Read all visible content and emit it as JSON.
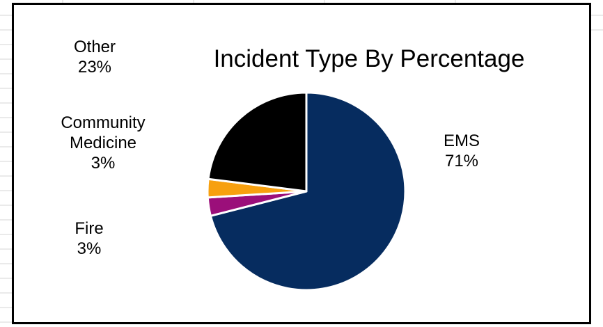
{
  "colors": {
    "EMS": "#062C5F",
    "Fire": "#9B0F7A",
    "Community Medicine": "#F7A00F",
    "Other": "#000000",
    "frame": "#000000",
    "gridline": "#D6D6D6"
  },
  "chart_data": {
    "type": "pie",
    "title": "Incident Type By Percentage",
    "categories": [
      "EMS",
      "Fire",
      "Community Medicine",
      "Other"
    ],
    "values": [
      71,
      3,
      3,
      23
    ],
    "labels": [
      {
        "category": "EMS",
        "name_lines": [
          "EMS"
        ],
        "percent": "71%"
      },
      {
        "category": "Fire",
        "name_lines": [
          "Fire"
        ],
        "percent": "3%"
      },
      {
        "category": "Community Medicine",
        "name_lines": [
          "Community",
          "Medicine"
        ],
        "percent": "3%"
      },
      {
        "category": "Other",
        "name_lines": [
          "Other"
        ],
        "percent": "23%"
      }
    ],
    "legend": "none (data labels)"
  }
}
